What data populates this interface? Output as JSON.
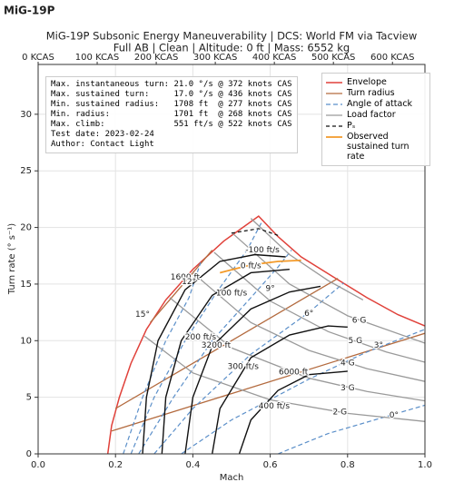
{
  "header": "MiG-19P",
  "chart_data": {
    "type": "line",
    "title": "MiG-19P Subsonic Energy Maneuverability | DCS: World FM via Tacview",
    "subtitle": "Full AB | Clean | Altitude: 0 ft | Mass: 6552 kg",
    "x_label": "Mach",
    "y_label": "Turn rate (° s⁻¹)",
    "xlim": [
      0,
      1
    ],
    "xticks": [
      {
        "value": 0,
        "label": "0.0"
      },
      0.2,
      0.4,
      0.6,
      0.8,
      {
        "value": 1,
        "label": "1.0"
      }
    ],
    "ylim": [
      0,
      34.4
    ],
    "yticks": [
      0,
      5,
      10,
      15,
      20,
      25,
      30
    ],
    "x2lim": [
      0,
      655
    ],
    "x2ticks": [
      {
        "value": 0,
        "label": "0 KCAS"
      },
      {
        "value": 100,
        "label": "100 KCAS"
      },
      {
        "value": 200,
        "label": "200 KCAS"
      },
      {
        "value": 300,
        "label": "300 KCAS"
      },
      {
        "value": 400,
        "label": "400 KCAS"
      },
      {
        "value": 500,
        "label": "500 KCAS"
      },
      {
        "value": 600,
        "label": "600 KCAS"
      }
    ],
    "grid": true,
    "legend": "upper right",
    "info_lines": [
      "Max. instantaneous turn: 21.0 °/s @ 372 knots CAS",
      "Max. sustained turn:     17.0 °/s @ 436 knots CAS",
      "Min. sustained radius:   1708 ft  @ 277 knots CAS",
      "Min. radius:             1701 ft  @ 268 knots CAS",
      "Max. climb:              551 ft/s @ 522 knots CAS",
      "Test date: 2023-02-24",
      "Author: Contact Light"
    ],
    "series": [
      {
        "name": "Envelope",
        "color": "#e0413a",
        "width": 1.5,
        "x": [
          0.18,
          0.19,
          0.21,
          0.24,
          0.28,
          0.33,
          0.4,
          0.48,
          0.57,
          0.62,
          0.68,
          0.76,
          0.85,
          0.93,
          1.0
        ],
        "values": [
          0,
          2.5,
          5,
          8,
          11,
          13.6,
          16.3,
          18.8,
          21.0,
          19.2,
          17.4,
          15.7,
          13.8,
          12.3,
          11.3
        ]
      },
      {
        "name": "Turn radius",
        "color": "#b36a3e",
        "width": 1.3,
        "x": [
          0.29,
          0.45,
          null,
          0.2,
          0.775,
          null,
          0.19,
          1.0
        ],
        "values": [
          11.6,
          18.0,
          null,
          4.0,
          15.5,
          null,
          2.02,
          10.65
        ]
      },
      {
        "name": "Angle of attack",
        "color": "#5b8fc9",
        "width": 1.2,
        "dash": "5,3",
        "x": [
          0.62,
          0.75,
          0.9,
          1.0,
          null,
          0.37,
          0.5,
          0.7,
          0.85,
          1.0,
          null,
          0.3,
          0.4,
          0.55,
          0.7,
          0.79,
          null,
          0.26,
          0.35,
          0.45,
          0.55,
          0.62,
          0.655,
          null,
          0.24,
          0.3,
          0.38,
          0.46,
          0.54,
          0.58,
          null,
          0.22,
          0.27,
          0.33,
          0.39,
          0.42
        ],
        "values": [
          0,
          1.8,
          3.3,
          4.3,
          null,
          0,
          3,
          6.6,
          9,
          11,
          null,
          0,
          4,
          8.8,
          12.5,
          15.1,
          null,
          0,
          5,
          10,
          13.8,
          16.5,
          18.0,
          null,
          0,
          5,
          10,
          14.2,
          18,
          20.6,
          null,
          0,
          5,
          10,
          13.8,
          16.9
        ]
      },
      {
        "name": "Load factor",
        "color": "#9a9a9a",
        "width": 1.3,
        "x": [
          0.275,
          0.4,
          0.6,
          0.8,
          1.0,
          null,
          0.34,
          0.5,
          0.7,
          0.85,
          1.0,
          null,
          0.4,
          0.55,
          0.7,
          0.85,
          1.0,
          null,
          0.455,
          0.6,
          0.75,
          0.9,
          1.0,
          null,
          0.5,
          0.65,
          0.8,
          1.0,
          null,
          0.55,
          0.65,
          0.75,
          0.84
        ],
        "values": [
          10.4,
          7.15,
          4.77,
          3.58,
          2.86,
          null,
          13.8,
          9.36,
          6.69,
          5.51,
          4.68,
          null,
          16.0,
          11.6,
          9.14,
          7.53,
          6.4,
          null,
          17.8,
          13.5,
          10.8,
          9.0,
          8.1,
          null,
          19.56,
          15.0,
          12.2,
          9.78,
          null,
          20.8,
          17.6,
          15.3,
          13.6
        ]
      },
      {
        "name": "Pₛ",
        "color": "#111111",
        "width": 1.2,
        "dash": "4,3",
        "x": [
          0.5,
          0.57,
          0.62
        ],
        "values": [
          19.5,
          19.9,
          19.3
        ]
      },
      {
        "name": "Observed sustained turn rate",
        "color": "#f39a2a",
        "width": 1.8,
        "x": [
          0.47,
          0.55,
          0.62,
          0.68
        ],
        "values": [
          16.0,
          16.7,
          17.0,
          17.1
        ]
      },
      {
        "color": "#111111",
        "width": 1.4,
        "x": [
          0.27,
          0.28,
          0.31,
          0.38,
          0.47,
          0.56,
          0.64,
          null,
          0.32,
          0.33,
          0.37,
          0.45,
          0.55,
          0.65,
          null,
          0.38,
          0.4,
          0.45,
          0.55,
          0.65,
          0.73,
          null,
          0.45,
          0.47,
          0.55,
          0.65,
          0.75,
          0.8,
          null,
          0.52,
          0.55,
          0.62,
          0.7,
          0.8
        ],
        "values": [
          0,
          5,
          10,
          14.5,
          17,
          17.6,
          17.4,
          null,
          0,
          5,
          10,
          14,
          16,
          16.3,
          null,
          0,
          5,
          9.5,
          12.8,
          14.3,
          14.8,
          null,
          0,
          4,
          8.5,
          10.5,
          11.3,
          11.2,
          null,
          0,
          3,
          5.6,
          7,
          7.3
        ]
      }
    ],
    "annotations": [
      {
        "text": "6 G",
        "x": 0.83,
        "y": 11.8,
        "color": "#777777"
      },
      {
        "text": "5 G",
        "x": 0.82,
        "y": 10.0,
        "color": "#777777"
      },
      {
        "text": "4 G",
        "x": 0.8,
        "y": 8.0,
        "color": "#777777"
      },
      {
        "text": "3 G",
        "x": 0.8,
        "y": 5.8,
        "color": "#777777"
      },
      {
        "text": "2 G",
        "x": 0.78,
        "y": 3.7,
        "color": "#777777"
      },
      {
        "text": "1600 ft",
        "x": 0.38,
        "y": 15.6,
        "color": "#b36a3e"
      },
      {
        "text": "3200 ft",
        "x": 0.46,
        "y": 9.6,
        "color": "#b36a3e"
      },
      {
        "text": "6000 ft",
        "x": 0.66,
        "y": 7.2,
        "color": "#b36a3e"
      },
      {
        "text": "15°",
        "x": 0.27,
        "y": 12.3,
        "color": "#5b8fc9"
      },
      {
        "text": "12°",
        "x": 0.39,
        "y": 15.2,
        "color": "#5b8fc9"
      },
      {
        "text": "9°",
        "x": 0.6,
        "y": 14.6,
        "color": "#5b8fc9"
      },
      {
        "text": "6°",
        "x": 0.7,
        "y": 12.4,
        "color": "#5b8fc9"
      },
      {
        "text": "3°",
        "x": 0.88,
        "y": 9.6,
        "color": "#5b8fc9"
      },
      {
        "text": "0°",
        "x": 0.92,
        "y": 3.4,
        "color": "#5b8fc9"
      },
      {
        "text": "-100 ft/s",
        "x": 0.58,
        "y": 18.0,
        "color": "#111111"
      },
      {
        "text": "0 ft/s",
        "x": 0.55,
        "y": 16.6,
        "color": "#111111"
      },
      {
        "text": "100 ft/s",
        "x": 0.5,
        "y": 14.2,
        "color": "#111111"
      },
      {
        "text": "200 ft/s",
        "x": 0.42,
        "y": 10.3,
        "color": "#111111"
      },
      {
        "text": "300 ft/s",
        "x": 0.53,
        "y": 7.7,
        "color": "#111111"
      },
      {
        "text": "400 ft/s",
        "x": 0.61,
        "y": 4.2,
        "color": "#111111"
      }
    ]
  }
}
